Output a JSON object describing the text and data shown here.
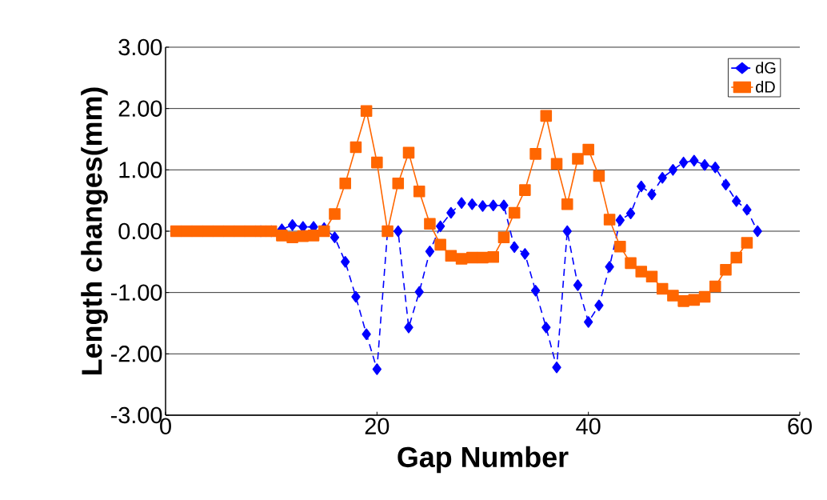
{
  "chart_data": {
    "type": "line",
    "xlabel": "Gap Number",
    "ylabel": "Length changes(mm)",
    "x": [
      1,
      2,
      3,
      4,
      5,
      6,
      7,
      8,
      9,
      10,
      11,
      12,
      13,
      14,
      15,
      16,
      17,
      18,
      19,
      20,
      21,
      22,
      23,
      24,
      25,
      26,
      27,
      28,
      29,
      30,
      31,
      32,
      33,
      34,
      35,
      36,
      37,
      38,
      39,
      40,
      41,
      42,
      43,
      44,
      45,
      46,
      47,
      48,
      49,
      50,
      51,
      52,
      53,
      54,
      55,
      56
    ],
    "series": [
      {
        "name": "dG",
        "color": "#0000ff",
        "marker": "diamond",
        "line_style": "dashed",
        "values": [
          null,
          null,
          null,
          null,
          null,
          null,
          null,
          null,
          0,
          0,
          0.03,
          0.1,
          0.07,
          0.07,
          0.05,
          -0.1,
          -0.5,
          -1.07,
          -1.68,
          -2.25,
          0,
          0,
          -1.57,
          -0.99,
          -0.33,
          0.08,
          0.3,
          0.46,
          0.44,
          0.41,
          0.42,
          0.42,
          -0.26,
          -0.37,
          -0.97,
          -1.57,
          -2.22,
          0,
          -0.88,
          -1.48,
          -1.21,
          -0.58,
          0.18,
          0.29,
          0.73,
          0.6,
          0.87,
          1.0,
          1.12,
          1.15,
          1.08,
          1.04,
          0.76,
          0.49,
          0.35,
          0
        ]
      },
      {
        "name": "dD",
        "color": "#ff6600",
        "marker": "square",
        "line_style": "solid",
        "values": [
          0,
          0,
          0,
          0,
          0,
          0,
          0,
          0,
          0,
          0,
          -0.07,
          -0.1,
          -0.08,
          -0.07,
          0,
          0.28,
          0.78,
          1.37,
          1.96,
          1.12,
          0,
          0.78,
          1.28,
          0.65,
          0.12,
          -0.22,
          -0.4,
          -0.45,
          -0.43,
          -0.43,
          -0.42,
          -0.1,
          0.3,
          0.67,
          1.26,
          1.88,
          1.1,
          0.44,
          1.18,
          1.33,
          0.9,
          0.19,
          -0.25,
          -0.52,
          -0.66,
          -0.74,
          -0.94,
          -1.05,
          -1.14,
          -1.12,
          -1.07,
          -0.9,
          -0.63,
          -0.43,
          -0.19,
          null
        ]
      }
    ],
    "xlim": [
      0,
      60
    ],
    "xticks": [
      0,
      20,
      40,
      60
    ],
    "ylim": [
      -3,
      3
    ],
    "yticks": [
      {
        "value": -3,
        "label": "-3.00"
      },
      {
        "value": -2,
        "label": "-2.00"
      },
      {
        "value": -1,
        "label": "-1.00"
      },
      {
        "value": 0,
        "label": "0.00"
      },
      {
        "value": 1,
        "label": "1.00"
      },
      {
        "value": 2,
        "label": "2.00"
      },
      {
        "value": 3,
        "label": "3.00"
      }
    ],
    "grid": "y",
    "legend": "top right"
  }
}
